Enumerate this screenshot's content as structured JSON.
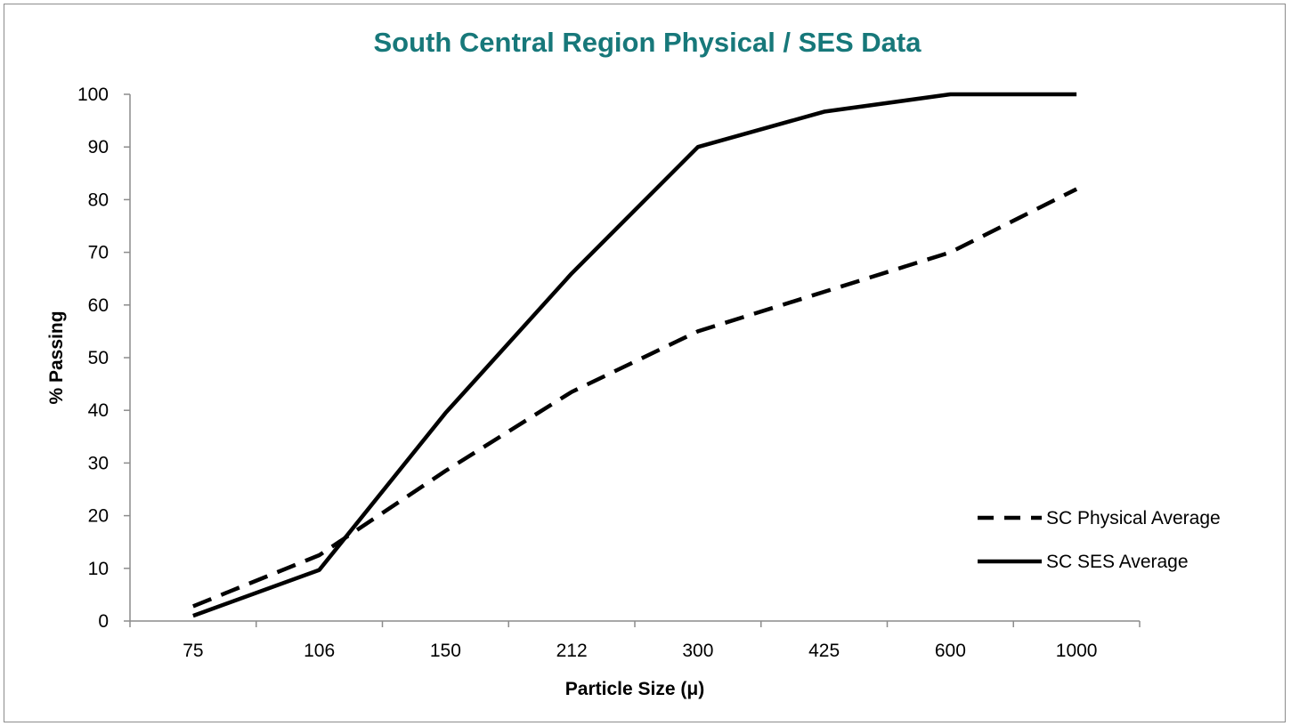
{
  "chart_data": {
    "type": "line",
    "title": "South Central Region Physical / SES Data",
    "xlabel": "Particle Size (μ)",
    "ylabel": "% Passing",
    "categories": [
      "75",
      "106",
      "150",
      "212",
      "300",
      "425",
      "600",
      "1000"
    ],
    "ylim": [
      0,
      100
    ],
    "yticks": [
      "0",
      "10",
      "20",
      "30",
      "40",
      "50",
      "60",
      "70",
      "80",
      "90",
      "100"
    ],
    "grid": false,
    "legend_position": "right",
    "series": [
      {
        "name": "SC Physical Average",
        "style": "dashed",
        "values": [
          2.8,
          12.5,
          28.5,
          43.5,
          55,
          62.5,
          70,
          82
        ]
      },
      {
        "name": "SC SES Average",
        "style": "solid",
        "values": [
          1,
          9.7,
          39.5,
          66,
          90,
          96.7,
          100,
          100
        ]
      }
    ],
    "colors": {
      "title": "#17787a",
      "line": "#000000",
      "axis": "#8c8c8c"
    }
  }
}
